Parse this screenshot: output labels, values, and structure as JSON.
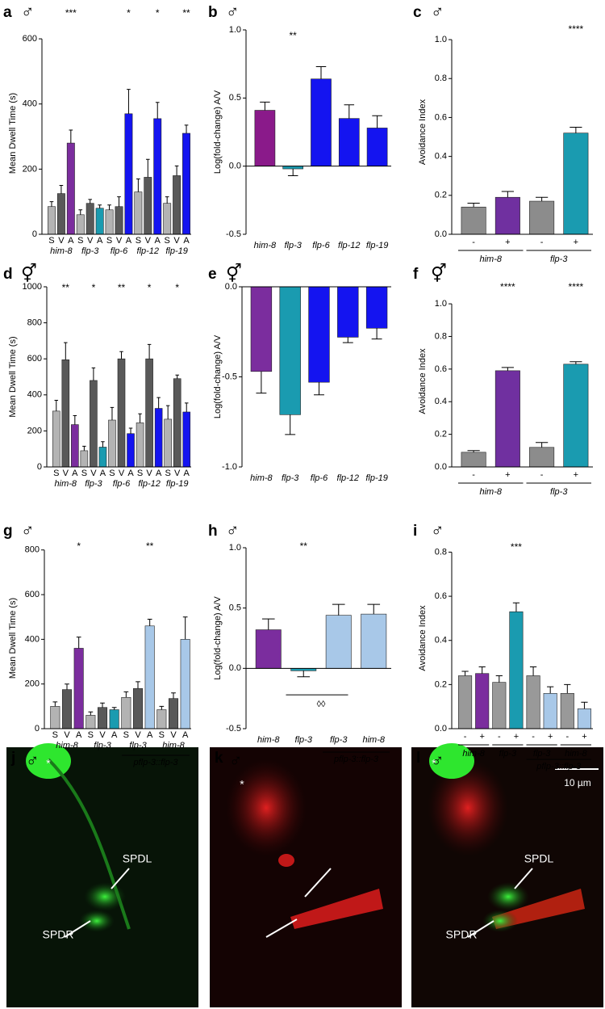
{
  "chart_data": [
    {
      "type": "bar",
      "panel": "a",
      "sex": "♂",
      "ylabel": "Mean Dwell Time (s)",
      "categories": [
        "S",
        "V",
        "A",
        "S",
        "V",
        "A",
        "S",
        "V",
        "A",
        "S",
        "V",
        "A",
        "S",
        "V",
        "A"
      ],
      "values": [
        85,
        125,
        280,
        60,
        95,
        80,
        75,
        85,
        370,
        130,
        175,
        355,
        95,
        180,
        310
      ],
      "errors": [
        15,
        25,
        40,
        15,
        12,
        10,
        15,
        30,
        75,
        40,
        55,
        50,
        20,
        30,
        25
      ],
      "colors": [
        "#b3b3b3",
        "#595959",
        "#7b2d9e",
        "#b3b3b3",
        "#595959",
        "#1a9bb0",
        "#b3b3b3",
        "#595959",
        "#1414f0",
        "#b3b3b3",
        "#595959",
        "#1414f0",
        "#b3b3b3",
        "#595959",
        "#1414f0"
      ],
      "stars": [
        null,
        null,
        "***",
        null,
        null,
        null,
        null,
        null,
        "*",
        null,
        null,
        "*",
        null,
        null,
        "**"
      ],
      "group_labels": [
        "him-8",
        "flp-3",
        "flp-6",
        "flp-12",
        "flp-19"
      ],
      "ylim": [
        0,
        620
      ],
      "yticks": [
        0,
        200,
        400,
        600
      ]
    },
    {
      "type": "bar",
      "panel": "b",
      "sex": "♂",
      "ylabel": "Log(fold-change) A/V",
      "categories": [
        "him-8",
        "flp-3",
        "flp-6",
        "flp-12",
        "flp-19"
      ],
      "values": [
        0.41,
        -0.02,
        0.64,
        0.35,
        0.28
      ],
      "errors": [
        0.06,
        0.05,
        0.09,
        0.1,
        0.09
      ],
      "colors": [
        "#8a1a8a",
        "#1a9bb0",
        "#1414f0",
        "#1414f0",
        "#1414f0"
      ],
      "stars": [
        null,
        "**",
        null,
        null,
        null
      ],
      "ylim": [
        -0.5,
        1.0
      ],
      "yticks": [
        -0.5,
        {
          "value": 0,
          "label": "0.0"
        },
        0.5,
        {
          "value": 1,
          "label": "1.0"
        }
      ]
    },
    {
      "type": "bar",
      "panel": "c",
      "sex": "♂",
      "ylabel": "Avoidance Index",
      "categories": [
        "-",
        "+",
        "-",
        "+"
      ],
      "values": [
        0.14,
        0.19,
        0.17,
        0.52
      ],
      "errors": [
        0.02,
        0.03,
        0.02,
        0.03
      ],
      "colors": [
        "#8c8c8c",
        "#7030a0",
        "#8c8c8c",
        "#1a9bb0"
      ],
      "stars": [
        null,
        null,
        null,
        "****"
      ],
      "group_labels": [
        "him-8",
        "flp-3"
      ],
      "ylim": [
        0,
        1.05
      ],
      "yticks": [
        {
          "value": 0,
          "label": "0.0"
        },
        0.2,
        0.4,
        0.6,
        0.8,
        {
          "value": 1,
          "label": "1.0"
        }
      ]
    },
    {
      "type": "bar",
      "panel": "d",
      "sex": "⚥",
      "ylabel": "Mean Dwell Time (s)",
      "categories": [
        "S",
        "V",
        "A",
        "S",
        "V",
        "A",
        "S",
        "V",
        "A",
        "S",
        "V",
        "A",
        "S",
        "V",
        "A"
      ],
      "values": [
        310,
        595,
        235,
        90,
        480,
        110,
        260,
        600,
        185,
        245,
        600,
        325,
        265,
        490,
        305
      ],
      "errors": [
        60,
        95,
        50,
        25,
        70,
        30,
        70,
        40,
        30,
        50,
        80,
        60,
        75,
        20,
        50
      ],
      "colors": [
        "#b3b3b3",
        "#595959",
        "#7b2d9e",
        "#b3b3b3",
        "#595959",
        "#1a9bb0",
        "#b3b3b3",
        "#595959",
        "#1414f0",
        "#b3b3b3",
        "#595959",
        "#1414f0",
        "#b3b3b3",
        "#595959",
        "#1414f0"
      ],
      "stars": [
        null,
        "**",
        null,
        null,
        "*",
        null,
        null,
        "**",
        null,
        null,
        "*",
        null,
        null,
        "*",
        null
      ],
      "group_labels": [
        "him-8",
        "flp-3",
        "flp-6",
        "flp-12",
        "flp-19"
      ],
      "ylim": [
        0,
        1000
      ],
      "yticks": [
        0,
        200,
        400,
        600,
        800,
        1000
      ]
    },
    {
      "type": "bar",
      "panel": "e",
      "sex": "⚥",
      "ylabel": "Log(fold-change) A/V",
      "categories": [
        "him-8",
        "flp-3",
        "flp-6",
        "flp-12",
        "flp-19"
      ],
      "values": [
        -0.47,
        -0.71,
        -0.53,
        -0.28,
        -0.23
      ],
      "errors": [
        0.12,
        0.11,
        0.07,
        0.03,
        0.06
      ],
      "colors": [
        "#7b2d9e",
        "#1a9bb0",
        "#1414f0",
        "#1414f0",
        "#1414f0"
      ],
      "ylim": [
        -1.0,
        0.0
      ],
      "yticks": [
        {
          "value": -1,
          "label": "-1.0"
        },
        -0.5,
        {
          "value": 0,
          "label": "0.0"
        }
      ]
    },
    {
      "type": "bar",
      "panel": "f",
      "sex": "⚥",
      "ylabel": "Avoidance Index",
      "categories": [
        "-",
        "+",
        "-",
        "+"
      ],
      "values": [
        0.09,
        0.59,
        0.12,
        0.63
      ],
      "errors": [
        0.01,
        0.02,
        0.03,
        0.015
      ],
      "colors": [
        "#8c8c8c",
        "#7030a0",
        "#8c8c8c",
        "#1a9bb0"
      ],
      "stars": [
        null,
        "****",
        null,
        "****"
      ],
      "group_labels": [
        "him-8",
        "flp-3"
      ],
      "ylim": [
        0,
        1.05
      ],
      "yticks": [
        {
          "value": 0,
          "label": "0.0"
        },
        0.2,
        0.4,
        0.6,
        0.8,
        {
          "value": 1,
          "label": "1.0"
        }
      ]
    },
    {
      "type": "bar",
      "panel": "g",
      "sex": "♂",
      "ylabel": "Mean Dwell Time (s)",
      "categories": [
        "S",
        "V",
        "A",
        "S",
        "V",
        "A",
        "S",
        "V",
        "A",
        "S",
        "V",
        "A"
      ],
      "values": [
        100,
        175,
        360,
        60,
        95,
        85,
        140,
        180,
        460,
        85,
        135,
        400
      ],
      "errors": [
        20,
        25,
        50,
        15,
        20,
        10,
        25,
        30,
        30,
        15,
        25,
        100
      ],
      "colors": [
        "#b3b3b3",
        "#595959",
        "#7b2d9e",
        "#b3b3b3",
        "#595959",
        "#1a9bb0",
        "#b3b3b3",
        "#595959",
        "#a8c8e8",
        "#b3b3b3",
        "#595959",
        "#a8c8e8"
      ],
      "stars": [
        null,
        null,
        "*",
        null,
        null,
        null,
        null,
        null,
        "**",
        null,
        null,
        null
      ],
      "group_labels": [
        "him-8",
        "flp-3",
        "flp-3",
        "him-8"
      ],
      "group_sublabel": "pflp-3::flp-3",
      "ylim": [
        0,
        810
      ],
      "yticks": [
        0,
        200,
        400,
        600,
        800
      ]
    },
    {
      "type": "bar",
      "panel": "h",
      "sex": "♂",
      "ylabel": "Log(fold-change) A/V",
      "categories": [
        "him-8",
        "flp-3",
        "flp-3",
        "him-8"
      ],
      "group_sublabel": "pflp-3::flp-3",
      "values": [
        0.32,
        -0.02,
        0.44,
        0.45
      ],
      "errors": [
        0.09,
        0.05,
        0.09,
        0.08
      ],
      "colors": [
        "#7b2d9e",
        "#1a9bb0",
        "#a8c8e8",
        "#a8c8e8"
      ],
      "stars": [
        null,
        "**",
        null,
        null
      ],
      "annotation": "◊◊",
      "ylim": [
        -0.5,
        1.0
      ],
      "yticks": [
        -0.5,
        {
          "value": 0,
          "label": "0.0"
        },
        0.5,
        {
          "value": 1,
          "label": "1.0"
        }
      ]
    },
    {
      "type": "bar",
      "panel": "i",
      "sex": "♂",
      "ylabel": "Avoidance Index",
      "categories": [
        "-",
        "+",
        "-",
        "+",
        "-",
        "+",
        "-",
        "+"
      ],
      "values": [
        0.24,
        0.25,
        0.21,
        0.53,
        0.24,
        0.16,
        0.16,
        0.09
      ],
      "errors": [
        0.02,
        0.03,
        0.03,
        0.04,
        0.04,
        0.03,
        0.04,
        0.03
      ],
      "colors": [
        "#999999",
        "#7b2d9e",
        "#999999",
        "#1a9bb0",
        "#999999",
        "#a8c8e8",
        "#999999",
        "#a8c8e8"
      ],
      "stars": [
        null,
        null,
        null,
        "***",
        null,
        null,
        null,
        null
      ],
      "group_labels": [
        "him-8",
        "flp-3",
        "flp-3",
        "him-8"
      ],
      "group_sublabel": "pflp-3::flp-3",
      "ylim": [
        0,
        0.82
      ],
      "yticks": [
        {
          "value": 0,
          "label": "0.0"
        },
        0.2,
        0.4,
        0.6,
        0.8
      ]
    }
  ],
  "images": [
    {
      "panel": "j",
      "sex": "♂",
      "marker": "*",
      "labels": [
        "SPDL",
        "SPDR"
      ]
    },
    {
      "panel": "k",
      "sex": "♂",
      "marker": "*"
    },
    {
      "panel": "l",
      "sex": "♂",
      "marker": "*",
      "labels": [
        "SPDL",
        "SPDR"
      ],
      "scale": "10 µm"
    }
  ]
}
